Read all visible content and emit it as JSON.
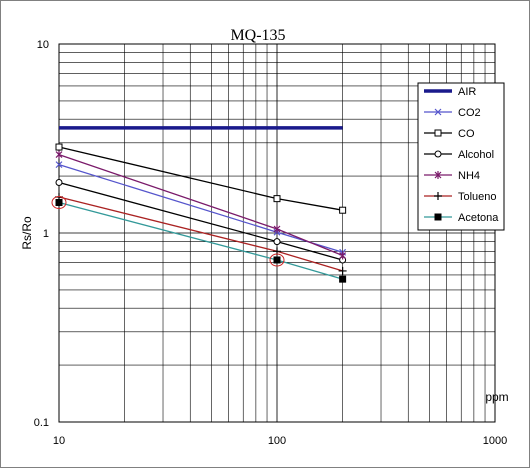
{
  "chart_data": {
    "type": "line",
    "title": "MQ-135",
    "xlabel": "ppm",
    "ylabel": "Rs/Ro",
    "xscale": "log",
    "yscale": "log",
    "xlim": [
      10,
      1000
    ],
    "ylim": [
      0.1,
      10
    ],
    "x_tick_labels": [
      "10",
      "100",
      "1000"
    ],
    "y_tick_labels": [
      "0.1",
      "1",
      "10"
    ],
    "grid": true,
    "legend_position": "right",
    "series": [
      {
        "name": "AIR",
        "color": "#1a1a8c",
        "marker": "none",
        "x": [
          10,
          200
        ],
        "y": [
          3.6,
          3.6
        ]
      },
      {
        "name": "CO2",
        "color": "#5555cc",
        "marker": "x",
        "x": [
          10,
          100,
          200
        ],
        "y": [
          2.3,
          1.01,
          0.79
        ]
      },
      {
        "name": "CO",
        "color": "#000000",
        "marker": "square",
        "x": [
          10,
          100,
          200
        ],
        "y": [
          2.85,
          1.52,
          1.32
        ]
      },
      {
        "name": "Alcohol",
        "color": "#000000",
        "marker": "circle",
        "x": [
          10,
          100,
          200
        ],
        "y": [
          1.85,
          0.9,
          0.72
        ]
      },
      {
        "name": "NH4",
        "color": "#7a1a6a",
        "marker": "star",
        "x": [
          10,
          100,
          200
        ],
        "y": [
          2.6,
          1.05,
          0.76
        ]
      },
      {
        "name": "Tolueno",
        "color": "#aa2222",
        "marker": "plus",
        "x": [
          10,
          100,
          200
        ],
        "y": [
          1.55,
          0.8,
          0.63
        ]
      },
      {
        "name": "Acetona",
        "color": "#339999",
        "marker": "filled-square",
        "x": [
          10,
          100,
          200
        ],
        "y": [
          1.45,
          0.72,
          0.57
        ]
      }
    ],
    "annotations": [
      {
        "type": "circle-highlight",
        "color": "#cc2222",
        "x": 10,
        "y": 1.45
      },
      {
        "type": "circle-highlight",
        "color": "#cc2222",
        "x": 100,
        "y": 0.72
      }
    ]
  }
}
